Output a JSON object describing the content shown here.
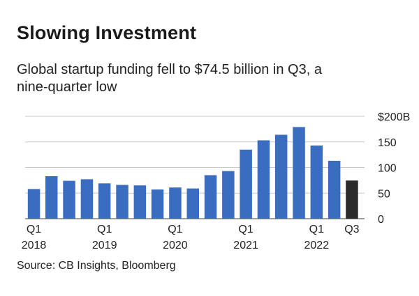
{
  "header": {
    "title": "Slowing Investment",
    "subtitle": "Global startup funding fell to $74.5 billion in Q3, a nine-quarter low"
  },
  "footer": {
    "source": "Source: CB Insights, Bloomberg"
  },
  "colors": {
    "bar": "#3a6cc0",
    "bar_highlight": "#2b2b2b",
    "grid": "#c8c8c8",
    "axis": "#666666"
  },
  "chart_data": {
    "type": "bar",
    "title": "Slowing Investment",
    "subtitle": "Global startup funding fell to $74.5 billion in Q3, a nine-quarter low",
    "xlabel": "",
    "ylabel": "",
    "unit": "$ billions",
    "ylim": [
      0,
      200
    ],
    "yticks": [
      {
        "value": 0,
        "label": "0"
      },
      {
        "value": 50,
        "label": "50"
      },
      {
        "value": 100,
        "label": "100"
      },
      {
        "value": 150,
        "label": "150"
      },
      {
        "value": 200,
        "label": "$200B"
      }
    ],
    "grid": true,
    "categories": [
      "Q1 2018",
      "Q2 2018",
      "Q3 2018",
      "Q4 2018",
      "Q1 2019",
      "Q2 2019",
      "Q3 2019",
      "Q4 2019",
      "Q1 2020",
      "Q2 2020",
      "Q3 2020",
      "Q4 2020",
      "Q1 2021",
      "Q2 2021",
      "Q3 2021",
      "Q4 2021",
      "Q1 2022",
      "Q2 2022",
      "Q3 2022"
    ],
    "values": [
      58,
      83,
      74,
      77,
      69,
      66,
      65,
      57,
      61,
      59,
      85,
      93,
      135,
      153,
      164,
      179,
      143,
      113,
      74.5
    ],
    "highlight_index": 18,
    "x_tick_labels": [
      {
        "index": 0,
        "quarter": "Q1",
        "year": "2018"
      },
      {
        "index": 4,
        "quarter": "Q1",
        "year": "2019"
      },
      {
        "index": 8,
        "quarter": "Q1",
        "year": "2020"
      },
      {
        "index": 12,
        "quarter": "Q1",
        "year": "2021"
      },
      {
        "index": 16,
        "quarter": "Q1",
        "year": "2022"
      },
      {
        "index": 18,
        "quarter": "Q3",
        "year": ""
      }
    ]
  }
}
